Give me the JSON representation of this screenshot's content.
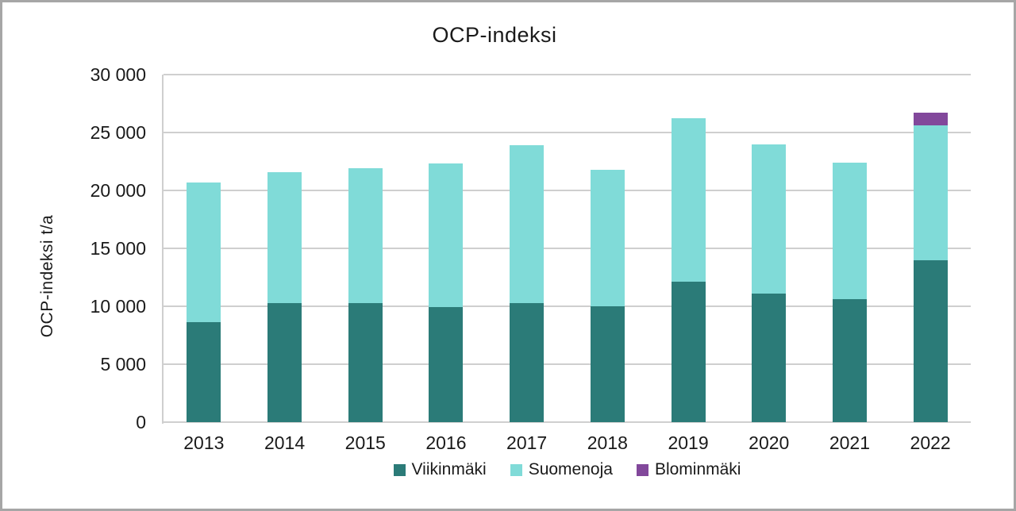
{
  "frame": {
    "border_color": "#A6A6A6",
    "background": "#FFFFFF"
  },
  "chart_data": {
    "type": "bar",
    "stacked": true,
    "title": "OCP-indeksi",
    "ylabel": "OCP-indeksi t/a",
    "xlabel": "",
    "categories": [
      "2013",
      "2014",
      "2015",
      "2016",
      "2017",
      "2018",
      "2019",
      "2020",
      "2021",
      "2022"
    ],
    "series": [
      {
        "name": "Viikinmäki",
        "color": "#2B7B78",
        "values": [
          8600,
          10300,
          10300,
          9900,
          10300,
          10000,
          12100,
          11100,
          10650,
          14000
        ]
      },
      {
        "name": "Suomenoja",
        "color": "#80DBD8",
        "values": [
          12100,
          11300,
          11600,
          12400,
          13600,
          11750,
          14100,
          12900,
          11750,
          11600
        ]
      },
      {
        "name": "Blominmäki",
        "color": "#82489B",
        "values": [
          0,
          0,
          0,
          0,
          0,
          0,
          0,
          0,
          0,
          1100
        ]
      }
    ],
    "stack_totals": [
      20700,
      21600,
      21900,
      22300,
      23900,
      21750,
      26200,
      24000,
      22400,
      26700
    ],
    "ylim": [
      0,
      30000
    ],
    "yticks": [
      {
        "value": 0,
        "label": "0"
      },
      {
        "value": 5000,
        "label": "5 000"
      },
      {
        "value": 10000,
        "label": "10 000"
      },
      {
        "value": 15000,
        "label": "15 000"
      },
      {
        "value": 20000,
        "label": "20 000"
      },
      {
        "value": 25000,
        "label": "25 000"
      },
      {
        "value": 30000,
        "label": "30 000"
      }
    ],
    "grid": true,
    "legend_position": "bottom",
    "colors": {
      "gridline": "#CFCFCF",
      "axis": "#CFCFCF",
      "text": "#1A1A1A"
    }
  }
}
